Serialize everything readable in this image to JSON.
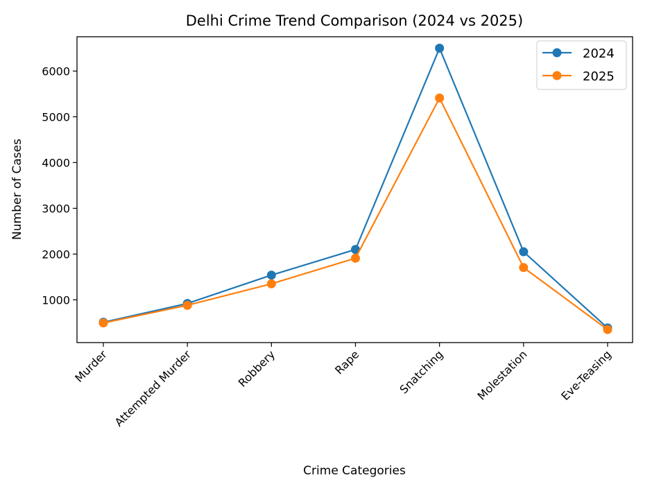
{
  "chart_data": {
    "type": "line",
    "title": "Delhi Crime Trend Comparison (2024 vs 2025)",
    "xlabel": "Crime Categories",
    "ylabel": "Number of Cases",
    "categories": [
      "Murder",
      "Attempted Murder",
      "Robbery",
      "Rape",
      "Snatching",
      "Molestation",
      "Eve-Teasing"
    ],
    "series": [
      {
        "name": "2024",
        "color": "#1f77b4",
        "values": [
          510,
          920,
          1540,
          2100,
          6500,
          2050,
          385
        ]
      },
      {
        "name": "2025",
        "color": "#ff7f0e",
        "values": [
          495,
          880,
          1350,
          1910,
          5410,
          1705,
          350
        ]
      }
    ],
    "ylim": [
      65,
      6750
    ],
    "yticks": [
      1000,
      2000,
      3000,
      4000,
      5000,
      6000
    ],
    "grid": false,
    "legend": "top-right",
    "marker": "circle"
  }
}
